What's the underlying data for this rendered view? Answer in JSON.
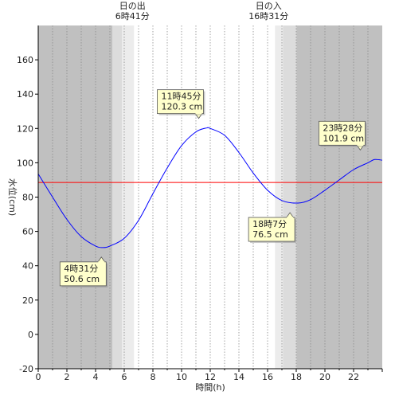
{
  "chart_data": {
    "type": "line",
    "xlabel": "時間(h)",
    "ylabel": "水位(cm)",
    "xlim": [
      0,
      24
    ],
    "ylim": [
      -20,
      180
    ],
    "x_ticks": [
      0,
      2,
      4,
      6,
      8,
      10,
      12,
      14,
      16,
      18,
      20,
      22
    ],
    "y_ticks": [
      -20,
      0,
      20,
      40,
      60,
      80,
      100,
      120,
      140,
      160
    ],
    "grid": "vertical dotted every hour",
    "reference_line": {
      "value": 88.5,
      "color": "#ff0000"
    },
    "sunrise": {
      "label": "日の出",
      "time_label": "6時41分",
      "hour": 6.683
    },
    "sunset": {
      "label": "日の入",
      "time_label": "16時31分",
      "hour": 16.517
    },
    "night_color": "#c0c0c0",
    "twilight_color": "#dcdcdc",
    "line_color": "#0000ff",
    "series": [
      {
        "values_at_hours": [
          [
            0,
            93.5
          ],
          [
            1,
            80
          ],
          [
            2,
            67
          ],
          [
            3,
            57
          ],
          [
            4,
            51.5
          ],
          [
            4.52,
            50.6
          ],
          [
            5,
            51.5
          ],
          [
            6,
            56
          ],
          [
            7,
            66.5
          ],
          [
            8,
            82
          ],
          [
            9,
            97
          ],
          [
            10,
            110
          ],
          [
            11,
            118
          ],
          [
            11.75,
            120.3
          ],
          [
            12,
            120
          ],
          [
            13,
            116
          ],
          [
            14,
            106
          ],
          [
            15,
            94
          ],
          [
            16,
            84
          ],
          [
            17,
            78
          ],
          [
            18.12,
            76.5
          ],
          [
            19,
            78.5
          ],
          [
            20,
            84
          ],
          [
            21,
            90
          ],
          [
            22,
            96
          ],
          [
            23,
            100
          ],
          [
            23.47,
            101.9
          ],
          [
            24,
            101.5
          ]
        ]
      }
    ],
    "annotations": [
      {
        "time": "4時31分",
        "value": "50.6 cm",
        "hour": 4.517,
        "level": 50.6
      },
      {
        "time": "11時45分",
        "value": "120.3 cm",
        "hour": 11.75,
        "level": 120.3
      },
      {
        "time": "18時7分",
        "value": "76.5 cm",
        "hour": 18.117,
        "level": 76.5
      },
      {
        "time": "23時28分",
        "value": "101.9 cm",
        "hour": 23.467,
        "level": 101.9
      }
    ]
  }
}
